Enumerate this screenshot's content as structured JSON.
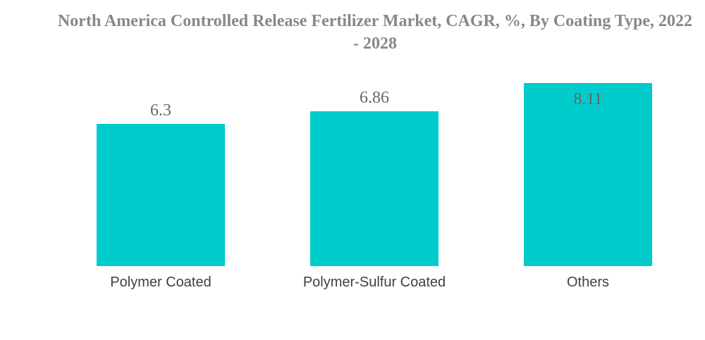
{
  "chart_data": {
    "type": "bar",
    "title": "North America Controlled Release Fertilizer Market, CAGR, %, By Coating Type, 2022 - 2028",
    "categories": [
      "Polymer Coated",
      "Polymer-Sulfur Coated",
      "Others"
    ],
    "values": [
      6.3,
      6.86,
      8.11
    ],
    "value_labels": [
      "6.3",
      "6.86",
      "8.11"
    ],
    "xlabel": "",
    "ylabel": "",
    "ylim": [
      0,
      8.11
    ],
    "grid": false,
    "legend": "none",
    "bar_color": "#00CCCC"
  }
}
